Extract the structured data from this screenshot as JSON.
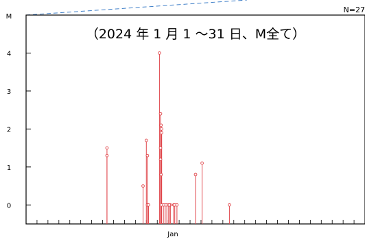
{
  "chart_data": {
    "type": "stem",
    "title": "（2024 年 1 月 1 ～31 日、M全て）",
    "count_label": "N=27",
    "ylabel": "M",
    "xlabel": "Jan",
    "ylim": [
      -0.5,
      5
    ],
    "yticks": [
      "0",
      "1",
      "2",
      "3",
      "4"
    ],
    "xlim": [
      1,
      32
    ],
    "colors": {
      "stem": "#e0474c",
      "axis": "#000000",
      "dashed": "#3f7fc8"
    },
    "points": [
      {
        "day": 8.4,
        "m": 1.5
      },
      {
        "day": 8.4,
        "m": 1.3
      },
      {
        "day": 11.7,
        "m": 0.5
      },
      {
        "day": 12.0,
        "m": 1.7
      },
      {
        "day": 12.1,
        "m": 1.3
      },
      {
        "day": 12.1,
        "m": 0.0
      },
      {
        "day": 12.2,
        "m": 0.0
      },
      {
        "day": 13.2,
        "m": 4.0
      },
      {
        "day": 13.3,
        "m": 2.4
      },
      {
        "day": 13.35,
        "m": 2.1
      },
      {
        "day": 13.4,
        "m": 2.0
      },
      {
        "day": 13.4,
        "m": 1.9
      },
      {
        "day": 13.3,
        "m": 1.5
      },
      {
        "day": 13.3,
        "m": 1.2
      },
      {
        "day": 13.35,
        "m": 0.8
      },
      {
        "day": 13.4,
        "m": 0.0
      },
      {
        "day": 13.6,
        "m": 0.0
      },
      {
        "day": 13.8,
        "m": 0.0
      },
      {
        "day": 14.0,
        "m": 0.0
      },
      {
        "day": 14.2,
        "m": 0.0
      },
      {
        "day": 14.5,
        "m": 0.0
      },
      {
        "day": 14.6,
        "m": 0.0
      },
      {
        "day": 14.8,
        "m": 0.0
      },
      {
        "day": 16.5,
        "m": 0.8
      },
      {
        "day": 17.1,
        "m": 1.1
      },
      {
        "day": 19.6,
        "m": 0.0
      },
      {
        "day": 14.1,
        "m": 0.0
      }
    ]
  }
}
